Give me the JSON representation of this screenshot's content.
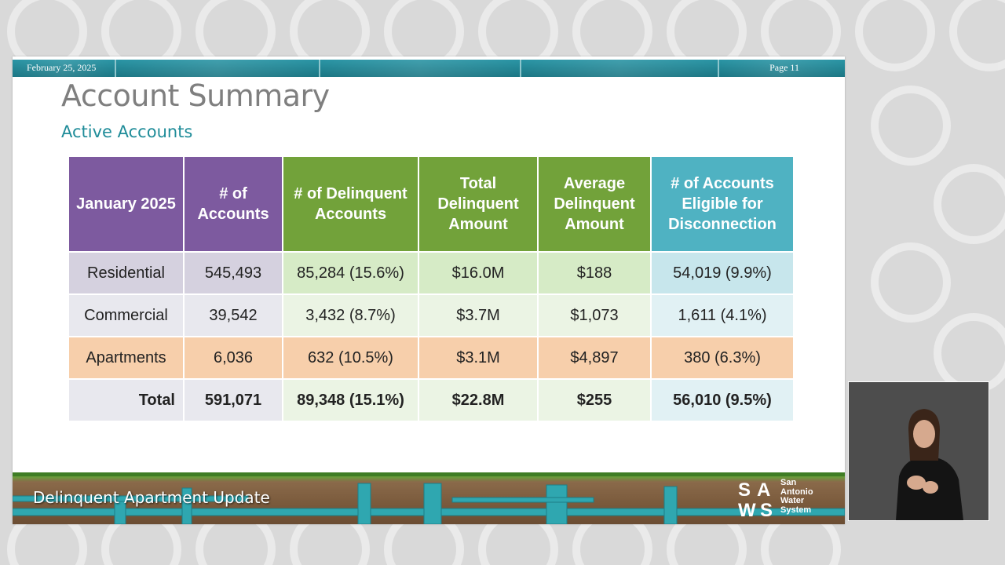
{
  "slide": {
    "date": "February 25, 2025",
    "page": "Page 11",
    "title": "Account Summary",
    "subtitle": "Active Accounts",
    "footer_title": "Delinquent Apartment Update",
    "logo": {
      "mark": "SAWS",
      "lines": [
        "San",
        "Antonio",
        "Water",
        "System"
      ]
    }
  },
  "table": {
    "headers": [
      "January 2025",
      "# of Accounts",
      "# of Delinquent Accounts",
      "Total Delinquent Amount",
      "Average Delinquent Amount",
      "# of Accounts Eligible for Disconnection"
    ],
    "rows": [
      [
        "Residential",
        "545,493",
        "85,284 (15.6%)",
        "$16.0M",
        "$188",
        "54,019 (9.9%)"
      ],
      [
        "Commercial",
        "39,542",
        "3,432 (8.7%)",
        "$3.7M",
        "$1,073",
        "1,611 (4.1%)"
      ],
      [
        "Apartments",
        "6,036",
        "632 (10.5%)",
        "$3.1M",
        "$4,897",
        "380 (6.3%)"
      ],
      [
        "Total",
        "591,071",
        "89,348 (15.1%)",
        "$22.8M",
        "$255",
        "56,010 (9.5%)"
      ]
    ]
  },
  "colors": {
    "header_purple": "#7d5a9f",
    "header_green": "#72a23a",
    "header_teal": "#4fb2c2",
    "title_gray": "#7f7f7f",
    "subtitle_teal": "#1f8c99"
  }
}
